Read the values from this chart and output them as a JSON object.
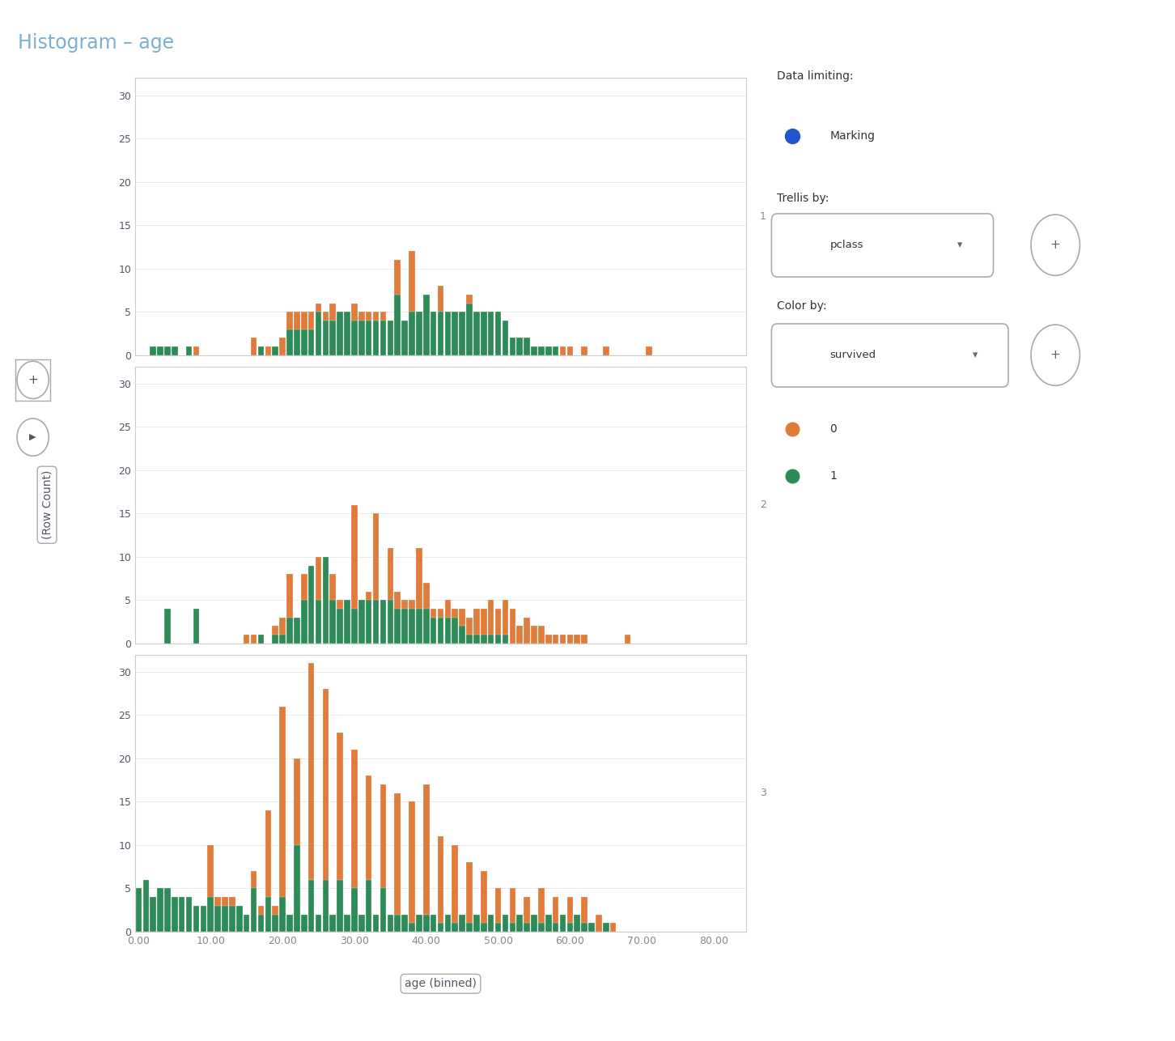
{
  "title": "Histogram – age",
  "xlabel": "age (binned)",
  "ylabel": "(Row Count)",
  "color_0": "#E07B39",
  "color_1": "#2D8B57",
  "bg_color": "#FFFFFF",
  "trellis_labels": [
    "1",
    "2",
    "3"
  ],
  "ylim": [
    0,
    32
  ],
  "yticks": [
    0,
    5,
    10,
    15,
    20,
    25,
    30
  ],
  "xlim": [
    -0.5,
    84.5
  ],
  "xticks": [
    0,
    10,
    20,
    30,
    40,
    50,
    60,
    70,
    80
  ],
  "p1_orange": [
    0,
    0,
    0,
    0,
    1,
    0,
    0,
    0,
    1,
    0,
    0,
    0,
    0,
    0,
    0,
    0,
    2,
    0,
    1,
    1,
    2,
    5,
    5,
    5,
    5,
    6,
    5,
    6,
    5,
    5,
    6,
    5,
    5,
    5,
    5,
    4,
    11,
    4,
    12,
    5,
    7,
    4,
    8,
    4,
    5,
    4,
    7,
    4,
    5,
    4,
    1,
    3,
    1,
    2,
    1,
    1,
    1,
    1,
    1,
    1,
    1,
    0,
    1,
    0,
    0,
    1,
    0,
    0,
    0,
    0,
    0,
    1,
    0,
    0,
    0,
    0,
    0,
    0,
    0,
    0,
    0,
    0,
    0,
    0
  ],
  "p1_green": [
    0,
    0,
    1,
    1,
    1,
    1,
    0,
    1,
    0,
    0,
    0,
    0,
    0,
    0,
    0,
    0,
    0,
    1,
    0,
    1,
    0,
    3,
    3,
    3,
    3,
    5,
    4,
    4,
    5,
    5,
    4,
    4,
    4,
    4,
    4,
    4,
    7,
    4,
    5,
    5,
    7,
    5,
    5,
    5,
    5,
    5,
    6,
    5,
    5,
    5,
    5,
    4,
    2,
    2,
    2,
    1,
    1,
    1,
    1,
    0,
    0,
    0,
    0,
    0,
    0,
    0,
    0,
    0,
    0,
    0,
    0,
    0,
    0,
    0,
    0,
    0,
    0,
    0,
    0,
    0,
    0,
    0,
    0,
    0
  ],
  "p2_orange": [
    0,
    0,
    0,
    0,
    1,
    0,
    0,
    0,
    0,
    0,
    0,
    0,
    0,
    0,
    0,
    1,
    1,
    1,
    0,
    2,
    3,
    8,
    3,
    8,
    5,
    10,
    5,
    8,
    5,
    5,
    16,
    4,
    6,
    15,
    5,
    11,
    6,
    5,
    5,
    11,
    7,
    4,
    4,
    5,
    4,
    4,
    3,
    4,
    4,
    5,
    4,
    5,
    4,
    2,
    3,
    2,
    2,
    1,
    1,
    1,
    1,
    1,
    1,
    0,
    0,
    0,
    0,
    0,
    1,
    0,
    0,
    0,
    0,
    0,
    0,
    0,
    0,
    0,
    0,
    0,
    0,
    0,
    0,
    0
  ],
  "p2_green": [
    0,
    0,
    0,
    0,
    4,
    0,
    0,
    0,
    4,
    0,
    0,
    0,
    0,
    0,
    0,
    0,
    0,
    1,
    0,
    1,
    1,
    3,
    3,
    5,
    9,
    5,
    10,
    5,
    4,
    5,
    4,
    5,
    5,
    5,
    5,
    5,
    4,
    4,
    4,
    4,
    4,
    3,
    3,
    3,
    3,
    2,
    1,
    1,
    1,
    1,
    1,
    1,
    0,
    0,
    0,
    0,
    0,
    0,
    0,
    0,
    0,
    0,
    0,
    0,
    0,
    0,
    0,
    0,
    0,
    0,
    0,
    0,
    0,
    0,
    0,
    0,
    0,
    0,
    0,
    0,
    0,
    0,
    0,
    0
  ],
  "p3_orange": [
    0,
    1,
    2,
    1,
    4,
    1,
    2,
    4,
    3,
    2,
    10,
    4,
    4,
    4,
    3,
    1,
    7,
    3,
    14,
    3,
    26,
    2,
    20,
    2,
    31,
    2,
    28,
    2,
    23,
    2,
    21,
    2,
    18,
    2,
    17,
    2,
    16,
    2,
    15,
    2,
    17,
    2,
    11,
    2,
    10,
    2,
    8,
    2,
    7,
    2,
    5,
    2,
    5,
    2,
    4,
    2,
    5,
    2,
    4,
    1,
    4,
    1,
    4,
    1,
    2,
    1,
    1,
    0,
    0,
    0,
    0,
    0,
    0,
    0,
    0,
    0,
    0,
    0,
    0,
    0,
    0,
    0,
    0,
    0
  ],
  "p3_green": [
    5,
    6,
    4,
    5,
    5,
    4,
    4,
    4,
    3,
    3,
    4,
    3,
    3,
    3,
    3,
    2,
    5,
    2,
    4,
    2,
    4,
    2,
    10,
    2,
    6,
    2,
    6,
    2,
    6,
    2,
    5,
    2,
    6,
    2,
    5,
    2,
    2,
    2,
    1,
    2,
    2,
    2,
    1,
    2,
    1,
    2,
    1,
    2,
    1,
    2,
    1,
    2,
    1,
    2,
    1,
    2,
    1,
    2,
    1,
    2,
    1,
    2,
    1,
    1,
    0,
    1,
    0,
    0,
    0,
    0,
    0,
    0,
    0,
    0,
    0,
    0,
    0,
    0,
    0,
    0,
    0,
    0,
    0,
    0
  ]
}
